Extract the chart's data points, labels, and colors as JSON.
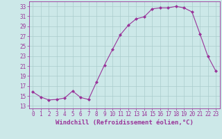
{
  "x": [
    0,
    1,
    2,
    3,
    4,
    5,
    6,
    7,
    8,
    9,
    10,
    11,
    12,
    13,
    14,
    15,
    16,
    17,
    18,
    19,
    20,
    21,
    22,
    23
  ],
  "y": [
    15.8,
    14.8,
    14.2,
    14.3,
    14.6,
    16.0,
    14.7,
    14.3,
    17.8,
    21.2,
    24.3,
    27.3,
    29.2,
    30.5,
    30.9,
    32.5,
    32.7,
    32.7,
    33.0,
    32.7,
    31.9,
    27.5,
    23.0,
    20.0
  ],
  "xlim": [
    -0.5,
    23.5
  ],
  "ylim": [
    12.5,
    34
  ],
  "yticks": [
    13,
    15,
    17,
    19,
    21,
    23,
    25,
    27,
    29,
    31,
    33
  ],
  "xticks": [
    0,
    1,
    2,
    3,
    4,
    5,
    6,
    7,
    8,
    9,
    10,
    11,
    12,
    13,
    14,
    15,
    16,
    17,
    18,
    19,
    20,
    21,
    22,
    23
  ],
  "xlabel": "Windchill (Refroidissement éolien,°C)",
  "line_color": "#993399",
  "marker": "D",
  "marker_size": 2.0,
  "bg_color": "#cce8e8",
  "grid_color": "#aacccc",
  "tick_label_fontsize": 5.5,
  "xlabel_fontsize": 6.5
}
